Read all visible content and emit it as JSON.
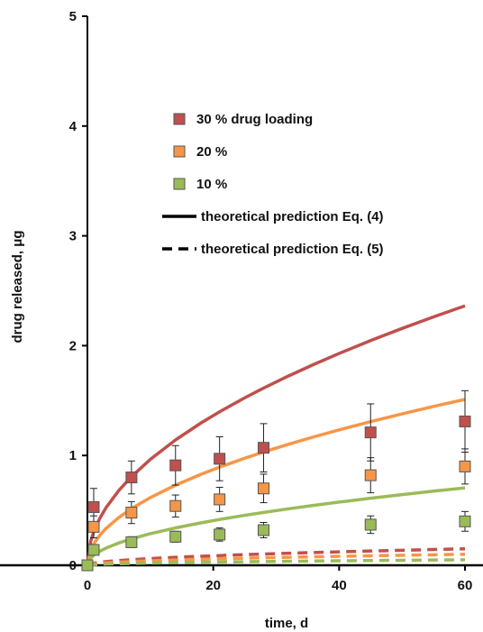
{
  "chart_data": {
    "type": "scatter",
    "xlabel": "time, d",
    "ylabel": "drug released, μg",
    "xlim": [
      0,
      60
    ],
    "ylim": [
      0,
      5
    ],
    "x_ticks": [
      "0",
      "20",
      "40",
      "60"
    ],
    "y_ticks": [
      "0",
      "1",
      "2",
      "3",
      "4",
      "5"
    ],
    "grid": false,
    "legend_position": "top-center",
    "x": [
      0,
      1,
      7,
      14,
      21,
      28,
      45,
      60
    ],
    "series": [
      {
        "name": "30 % drug loading",
        "color": "#c0504d",
        "marker": "square",
        "values": [
          0,
          0.53,
          0.8,
          0.91,
          0.97,
          1.07,
          1.21,
          1.31
        ],
        "errors": [
          0,
          0.17,
          0.15,
          0.18,
          0.2,
          0.22,
          0.26,
          0.28
        ]
      },
      {
        "name": "20 %",
        "color": "#f79646",
        "marker": "square",
        "values": [
          0,
          0.35,
          0.48,
          0.54,
          0.6,
          0.7,
          0.82,
          0.9
        ],
        "errors": [
          0,
          0.1,
          0.1,
          0.1,
          0.11,
          0.13,
          0.16,
          0.16
        ]
      },
      {
        "name": "10 %",
        "color": "#9bbb59",
        "marker": "square",
        "values": [
          0,
          0.14,
          0.21,
          0.26,
          0.28,
          0.32,
          0.37,
          0.4
        ],
        "errors": [
          0,
          0.04,
          0.05,
          0.05,
          0.06,
          0.07,
          0.08,
          0.09
        ]
      }
    ],
    "theory_x": [
      0,
      0.5,
      1,
      2,
      3,
      5,
      7,
      10,
      14,
      18,
      21,
      25,
      28,
      32,
      36,
      40,
      45,
      50,
      55,
      60
    ],
    "theory_eq4": [
      {
        "series": "30 % drug loading",
        "color": "#c0504d",
        "coef": 0.305
      },
      {
        "series": "20 %",
        "color": "#f79646",
        "coef": 0.195
      },
      {
        "series": "10 %",
        "color": "#9bbb59",
        "coef": 0.091
      }
    ],
    "theory_eq5": [
      {
        "series": "30 % drug loading",
        "color": "#c0504d",
        "end": 0.15
      },
      {
        "series": "20 %",
        "color": "#f79646",
        "end": 0.1
      },
      {
        "series": "10 %",
        "color": "#9bbb59",
        "end": 0.05
      }
    ],
    "legend": [
      {
        "label": "30 % drug loading",
        "kind": "marker",
        "color": "#c0504d"
      },
      {
        "label": "20 %",
        "kind": "marker",
        "color": "#f79646"
      },
      {
        "label": "10 %",
        "kind": "marker",
        "color": "#9bbb59"
      },
      {
        "label": "theoretical prediction Eq. (4)",
        "kind": "solid-line",
        "color": "#000000"
      },
      {
        "label": "theoretical prediction Eq. (5)",
        "kind": "dashed-line",
        "color": "#000000"
      }
    ]
  }
}
